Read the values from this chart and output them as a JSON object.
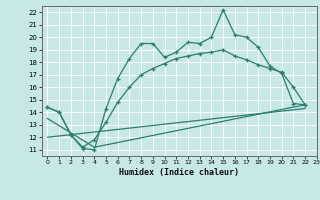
{
  "xlabel": "Humidex (Indice chaleur)",
  "line_color": "#2d7d6e",
  "background_color": "#c8e8e8",
  "grid_color": "#ffffff",
  "line1_x": [
    0,
    1,
    2,
    3,
    4,
    5,
    6,
    7,
    8,
    9,
    10,
    11,
    12,
    13,
    14,
    15,
    16,
    17,
    18,
    19,
    20,
    21,
    22
  ],
  "line1_y": [
    14.4,
    14.0,
    12.2,
    11.1,
    11.0,
    14.3,
    16.7,
    18.3,
    19.5,
    19.5,
    18.4,
    18.8,
    19.6,
    19.5,
    20.0,
    22.2,
    20.2,
    20.0,
    19.2,
    17.7,
    17.1,
    14.7,
    14.6
  ],
  "line2_x": [
    0,
    1,
    2,
    3,
    4,
    5,
    6,
    7,
    8,
    9,
    10,
    11,
    12,
    13,
    14,
    15,
    16,
    17,
    18,
    19,
    20,
    21,
    22
  ],
  "line2_y": [
    14.4,
    14.0,
    12.2,
    11.2,
    11.8,
    13.2,
    14.8,
    16.0,
    17.0,
    17.5,
    17.9,
    18.3,
    18.5,
    18.7,
    18.8,
    19.0,
    18.5,
    18.2,
    17.8,
    17.5,
    17.2,
    16.0,
    14.6
  ],
  "line3_x": [
    0,
    4,
    22
  ],
  "line3_y": [
    13.5,
    11.2,
    14.6
  ],
  "line4_x": [
    0,
    22
  ],
  "line4_y": [
    12.0,
    14.3
  ],
  "xlim": [
    -0.5,
    23
  ],
  "ylim": [
    10.5,
    22.5
  ],
  "yticks": [
    11,
    12,
    13,
    14,
    15,
    16,
    17,
    18,
    19,
    20,
    21,
    22
  ],
  "xticks": [
    0,
    1,
    2,
    3,
    4,
    5,
    6,
    7,
    8,
    9,
    10,
    11,
    12,
    13,
    14,
    15,
    16,
    17,
    18,
    19,
    20,
    21,
    22,
    23
  ]
}
